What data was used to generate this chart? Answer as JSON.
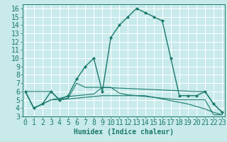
{
  "series": [
    {
      "x": [
        0,
        1,
        2,
        3,
        4,
        5,
        6,
        7,
        8,
        9,
        10,
        11,
        12,
        13,
        14,
        15,
        16,
        17,
        18,
        19,
        20,
        21,
        22,
        23
      ],
      "y": [
        6,
        4,
        4.5,
        6,
        5,
        5.5,
        7.5,
        9,
        10,
        6,
        12.5,
        14,
        15,
        16,
        15.5,
        15,
        14.5,
        10,
        5.5,
        5.5,
        5.5,
        6,
        4.5,
        3.5
      ],
      "color": "#1a7a6e",
      "linewidth": 1.0,
      "linestyle": "-",
      "marker": "D",
      "markersize": 2.0
    },
    {
      "x": [
        0,
        1,
        2,
        3,
        4,
        5,
        6,
        7,
        8,
        9,
        10,
        11,
        12,
        13,
        14,
        15,
        16,
        17,
        18,
        19,
        20,
        21,
        22,
        23
      ],
      "y": [
        6,
        4,
        4.5,
        5.0,
        5.0,
        5.1,
        5.2,
        5.3,
        5.4,
        5.5,
        5.5,
        5.5,
        5.5,
        5.5,
        5.5,
        5.3,
        5.1,
        4.9,
        4.7,
        4.5,
        4.2,
        3.9,
        3.5,
        3.2
      ],
      "color": "#1a7a6e",
      "linewidth": 0.8,
      "linestyle": "-",
      "marker": null,
      "markersize": 0
    },
    {
      "x": [
        0,
        1,
        2,
        3,
        4,
        5,
        6,
        7,
        8,
        9,
        10,
        11,
        12,
        13,
        14,
        15,
        16,
        17,
        18,
        19,
        20,
        21,
        22,
        23
      ],
      "y": [
        6,
        4,
        4.5,
        5.0,
        5.2,
        5.4,
        5.5,
        5.6,
        5.7,
        6.5,
        6.5,
        5.8,
        5.6,
        5.5,
        5.4,
        5.3,
        5.2,
        5.1,
        5.0,
        5.0,
        5.0,
        5.0,
        3.2,
        3.2
      ],
      "color": "#1a7a6e",
      "linewidth": 0.8,
      "linestyle": "-",
      "marker": null,
      "markersize": 0
    },
    {
      "x": [
        0,
        3,
        4,
        5,
        6,
        7,
        8,
        9,
        20,
        21,
        22,
        23
      ],
      "y": [
        6,
        6,
        5,
        5.2,
        7,
        6.5,
        6.5,
        6.5,
        6,
        6,
        4.5,
        3.5
      ],
      "color": "#1a7a6e",
      "linewidth": 0.8,
      "linestyle": "-",
      "marker": null,
      "markersize": 0
    }
  ],
  "xlim": [
    -0.3,
    23.3
  ],
  "ylim": [
    3,
    16.5
  ],
  "yticks": [
    3,
    4,
    5,
    6,
    7,
    8,
    9,
    10,
    11,
    12,
    13,
    14,
    15,
    16
  ],
  "xticks": [
    0,
    1,
    2,
    3,
    4,
    5,
    6,
    7,
    8,
    9,
    10,
    11,
    12,
    13,
    14,
    15,
    16,
    17,
    18,
    19,
    20,
    21,
    22,
    23
  ],
  "xlabel": "Humidex (Indice chaleur)",
  "bg_color": "#c8eaea",
  "grid_color": "#ffffff",
  "line_color": "#1a7a6e",
  "font_size": 7.0
}
